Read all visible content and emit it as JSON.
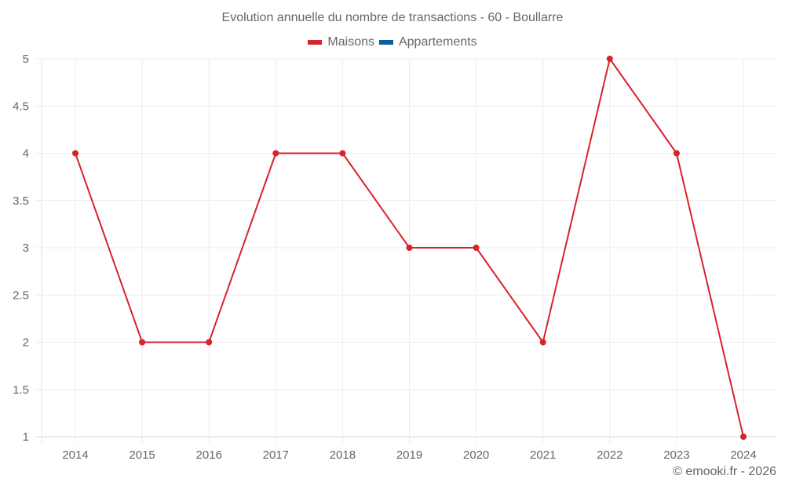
{
  "chart": {
    "title": "Evolution annuelle du nombre de transactions - 60 - Boullarre",
    "legend": [
      {
        "label": "Maisons",
        "color": "#d8232a"
      },
      {
        "label": "Appartements",
        "color": "#0f5f9b"
      }
    ],
    "credit": "© emooki.fr - 2026"
  },
  "chart_data": {
    "type": "line",
    "title": "Evolution annuelle du nombre de transactions - 60 - Boullarre",
    "xlabel": "",
    "ylabel": "",
    "categories": [
      "2014",
      "2015",
      "2016",
      "2017",
      "2018",
      "2019",
      "2020",
      "2021",
      "2022",
      "2023",
      "2024"
    ],
    "series": [
      {
        "name": "Maisons",
        "color": "#d8232a",
        "values": [
          4,
          2,
          2,
          4,
          4,
          3,
          3,
          2,
          5,
          4,
          1
        ]
      },
      {
        "name": "Appartements",
        "color": "#0f5f9b",
        "values": []
      }
    ],
    "ylim": [
      1,
      5
    ],
    "yticks": [
      "1",
      "1.5",
      "2",
      "2.5",
      "3",
      "3.5",
      "4",
      "4.5",
      "5"
    ],
    "grid": true,
    "legend_position": "top"
  }
}
